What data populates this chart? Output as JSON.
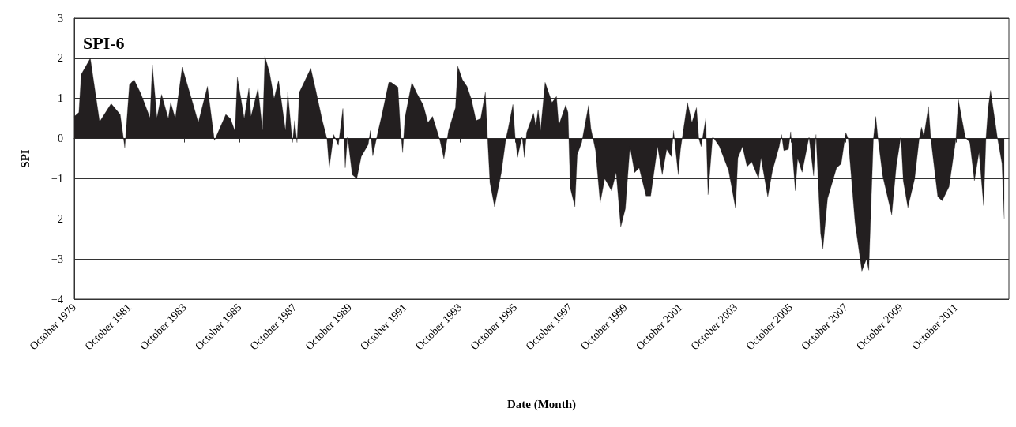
{
  "chart_data": {
    "type": "area",
    "title": "SPI-6",
    "xlabel": "Date (Month)",
    "ylabel": "SPI",
    "x": [
      "1979-10",
      "1979-12",
      "1980-01",
      "1980-05",
      "1980-09",
      "1981-02",
      "1981-06",
      "1981-08",
      "1981-10",
      "1981-12",
      "1982-03",
      "1982-07",
      "1982-08",
      "1982-10",
      "1982-12",
      "1983-03",
      "1983-04",
      "1983-06",
      "1983-09",
      "1984-02",
      "1984-04",
      "1984-08",
      "1984-11",
      "1985-04",
      "1985-06",
      "1985-08",
      "1985-09",
      "1985-12",
      "1986-02",
      "1986-03",
      "1986-06",
      "1986-08",
      "1986-09",
      "1986-11",
      "1987-01",
      "1987-03",
      "1987-06",
      "1987-07",
      "1987-09",
      "1987-10",
      "1987-11",
      "1987-12",
      "1988-05",
      "1988-07",
      "1988-10",
      "1988-12",
      "1989-01",
      "1989-03",
      "1989-05",
      "1989-07",
      "1989-08",
      "1989-09",
      "1989-11",
      "1990-01",
      "1990-03",
      "1990-06",
      "1990-07",
      "1990-08",
      "1990-10",
      "1990-12",
      "1991-03",
      "1991-04",
      "1991-07",
      "1991-08",
      "1991-09",
      "1991-10",
      "1992-01",
      "1992-03",
      "1992-06",
      "1992-08",
      "1992-10",
      "1993-01",
      "1993-03",
      "1993-05",
      "1993-08",
      "1993-09",
      "1993-11",
      "1994-01",
      "1994-03",
      "1994-05",
      "1994-07",
      "1994-09",
      "1994-10",
      "1994-11",
      "1995-01",
      "1995-04",
      "1995-06",
      "1995-07",
      "1995-09",
      "1995-10",
      "1995-11",
      "1996-01",
      "1996-02",
      "1996-03",
      "1996-06",
      "1996-07",
      "1996-08",
      "1996-09",
      "1996-11",
      "1997-02",
      "1997-04",
      "1997-05",
      "1997-08",
      "1997-09",
      "1997-10",
      "1997-12",
      "1998-01",
      "1998-03",
      "1998-06",
      "1998-07",
      "1998-09",
      "1998-11",
      "1999-01",
      "1999-04",
      "1999-06",
      "1999-08",
      "1999-10",
      "1999-12",
      "2000-02",
      "2000-04",
      "2000-07",
      "2000-09",
      "2000-12",
      "2001-02",
      "2001-04",
      "2001-06",
      "2001-07",
      "2001-09",
      "2001-10",
      "2002-01",
      "2002-03",
      "2002-05",
      "2002-06",
      "2002-07",
      "2002-09",
      "2002-10",
      "2002-12",
      "2003-03",
      "2003-07",
      "2003-10",
      "2003-11",
      "2004-01",
      "2004-03",
      "2004-05",
      "2004-08",
      "2004-09",
      "2004-12",
      "2005-02",
      "2005-05",
      "2005-06",
      "2005-07",
      "2005-09",
      "2005-10",
      "2005-12",
      "2006-01",
      "2006-03",
      "2006-06",
      "2006-08",
      "2006-09",
      "2006-11",
      "2006-12",
      "2007-02",
      "2007-06",
      "2007-08",
      "2007-10",
      "2007-11",
      "2008-02",
      "2008-05",
      "2008-07",
      "2008-08",
      "2008-10",
      "2008-11",
      "2008-12",
      "2009-02",
      "2009-06",
      "2009-08",
      "2009-10",
      "2009-11",
      "2010-01",
      "2010-04",
      "2010-06",
      "2010-07",
      "2010-08",
      "2010-10",
      "2010-11",
      "2011-02",
      "2011-04",
      "2011-07",
      "2011-10",
      "2011-11",
      "2012-02",
      "2012-04",
      "2012-06",
      "2012-08",
      "2012-10",
      "2012-11",
      "2012-12",
      "2013-01",
      "2013-04",
      "2013-06",
      "2013-07"
    ],
    "series": [
      {
        "color": "#231f20",
        "values": [
          0.55,
          0.65,
          1.6,
          2.0,
          0.42,
          0.87,
          0.6,
          -0.23,
          1.34,
          1.47,
          1.12,
          0.52,
          1.84,
          0.52,
          1.1,
          0.5,
          0.9,
          0.5,
          1.78,
          0.8,
          0.4,
          1.3,
          -0.05,
          0.6,
          0.5,
          0.18,
          1.53,
          0.5,
          1.25,
          0.55,
          1.25,
          0.2,
          2.05,
          1.65,
          1.0,
          1.45,
          0.2,
          1.15,
          -0.1,
          0.45,
          -0.1,
          1.15,
          1.75,
          1.25,
          0.45,
          0.0,
          -0.73,
          0.1,
          -0.17,
          0.75,
          -0.73,
          0.05,
          -0.9,
          -1.0,
          -0.45,
          -0.15,
          0.2,
          -0.43,
          0.1,
          0.6,
          1.4,
          1.4,
          1.28,
          0.28,
          -0.35,
          0.52,
          1.4,
          1.15,
          0.83,
          0.4,
          0.55,
          0.0,
          -0.5,
          0.2,
          0.77,
          1.8,
          1.47,
          1.3,
          0.97,
          0.45,
          0.5,
          1.15,
          0.0,
          -1.1,
          -1.7,
          -0.85,
          0.0,
          0.25,
          0.85,
          0.05,
          -0.47,
          0.05,
          -0.47,
          0.15,
          0.63,
          0.3,
          0.72,
          0.2,
          1.4,
          0.9,
          1.05,
          0.33,
          0.83,
          0.65,
          -1.23,
          -1.7,
          -0.4,
          -0.1,
          0.83,
          0.25,
          -0.3,
          -1.6,
          -1.0,
          -1.3,
          -0.85,
          -2.2,
          -1.75,
          -0.2,
          -0.85,
          -0.73,
          -1.43,
          -1.43,
          -0.2,
          -0.9,
          -0.27,
          -0.45,
          0.2,
          -0.9,
          -0.27,
          0.9,
          0.4,
          0.77,
          0.0,
          -0.2,
          0.5,
          -1.4,
          0.05,
          -0.2,
          -0.8,
          -1.74,
          -0.48,
          -0.2,
          -0.7,
          -0.58,
          -1.0,
          -0.48,
          -1.45,
          -0.8,
          -0.2,
          0.1,
          -0.3,
          -0.27,
          0.17,
          -1.3,
          -0.5,
          -0.84,
          0.03,
          -0.93,
          0.1,
          -2.36,
          -2.75,
          -1.5,
          -0.73,
          -0.63,
          0.15,
          0.0,
          -2.1,
          -3.3,
          -3.0,
          -3.28,
          0.0,
          0.55,
          0.0,
          -0.93,
          -1.9,
          -0.68,
          0.05,
          -1.05,
          -1.72,
          -1.0,
          0.0,
          0.28,
          0.05,
          0.8,
          0.0,
          -1.45,
          -1.55,
          -1.2,
          0.0,
          0.97,
          0.03,
          -0.1,
          -1.05,
          -0.35,
          -1.67,
          0.0,
          0.77,
          1.2,
          0.03,
          -0.62,
          -2.0
        ]
      }
    ],
    "xlim": [
      "1979-10",
      "2013-09"
    ],
    "xticks": [
      {
        "value": "1979-10",
        "label": "October 1979"
      },
      {
        "value": "1981-10",
        "label": "October 1981"
      },
      {
        "value": "1983-10",
        "label": "October 1983"
      },
      {
        "value": "1985-10",
        "label": "October 1985"
      },
      {
        "value": "1987-10",
        "label": "October 1987"
      },
      {
        "value": "1989-10",
        "label": "October 1989"
      },
      {
        "value": "1991-10",
        "label": "October 1991"
      },
      {
        "value": "1993-10",
        "label": "October 1993"
      },
      {
        "value": "1995-10",
        "label": "October 1995"
      },
      {
        "value": "1997-10",
        "label": "October 1997"
      },
      {
        "value": "1999-10",
        "label": "October 1999"
      },
      {
        "value": "2001-10",
        "label": "October 2001"
      },
      {
        "value": "2003-10",
        "label": "October 2003"
      },
      {
        "value": "2005-10",
        "label": "October 2005"
      },
      {
        "value": "2007-10",
        "label": "October 2007"
      },
      {
        "value": "2009-10",
        "label": "October 2009"
      },
      {
        "value": "2011-10",
        "label": "October 2011"
      }
    ],
    "ylim": [
      -4,
      3
    ],
    "yticks": [
      {
        "value": -4,
        "label": "−4"
      },
      {
        "value": -3,
        "label": "−3"
      },
      {
        "value": -2,
        "label": "−2"
      },
      {
        "value": -1,
        "label": "−1"
      },
      0,
      1,
      2,
      3
    ],
    "grid": "y",
    "marker": "none",
    "line_style": "solid"
  }
}
